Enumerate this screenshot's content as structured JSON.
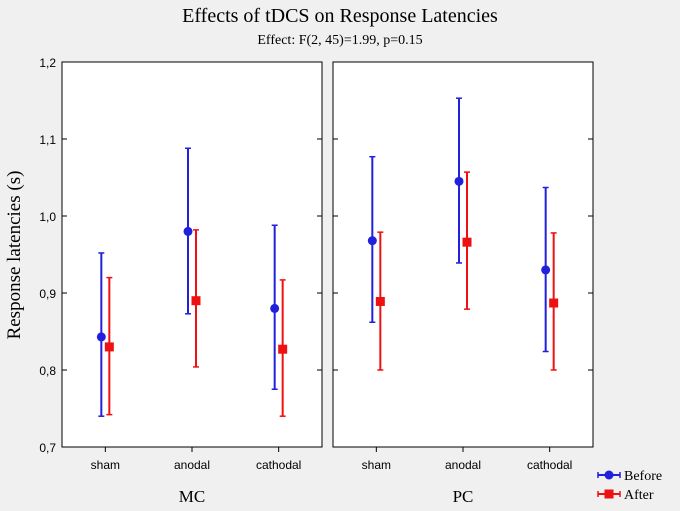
{
  "chart_data": {
    "type": "errorbar",
    "title": "Effects of tDCS on Response Latencies",
    "subtitle": "Effect: F(2, 45)=1.99, p=0.15",
    "ylabel": "Response latencies (s)",
    "ylim": [
      0.7,
      1.2
    ],
    "yticks": [
      "0,7",
      "0,8",
      "0,9",
      "1,0",
      "1,1",
      "1,2"
    ],
    "ytick_values": [
      0.7,
      0.8,
      0.9,
      1.0,
      1.1,
      1.2
    ],
    "categories": [
      "sham",
      "anodal",
      "cathodal"
    ],
    "legend": {
      "position": "bottom-right",
      "entries": [
        "Before",
        "After"
      ]
    },
    "colors": {
      "Before": "#2020dd",
      "After": "#ee1111",
      "panel_bg": "#ffffff",
      "page_bg": "#f0f0f0"
    },
    "panels": [
      {
        "label": "MC",
        "series": [
          {
            "name": "Before",
            "mean": [
              0.843,
              0.98,
              0.88
            ],
            "low": [
              0.74,
              0.873,
              0.775
            ],
            "high": [
              0.952,
              1.088,
              0.988
            ]
          },
          {
            "name": "After",
            "mean": [
              0.83,
              0.89,
              0.827
            ],
            "low": [
              0.742,
              0.804,
              0.74
            ],
            "high": [
              0.92,
              0.982,
              0.917
            ]
          }
        ]
      },
      {
        "label": "PC",
        "series": [
          {
            "name": "Before",
            "mean": [
              0.968,
              1.045,
              0.93
            ],
            "low": [
              0.862,
              0.939,
              0.824
            ],
            "high": [
              1.077,
              1.153,
              1.037
            ]
          },
          {
            "name": "After",
            "mean": [
              0.889,
              0.966,
              0.887
            ],
            "low": [
              0.8,
              0.879,
              0.8
            ],
            "high": [
              0.979,
              1.057,
              0.978
            ]
          }
        ]
      }
    ]
  }
}
